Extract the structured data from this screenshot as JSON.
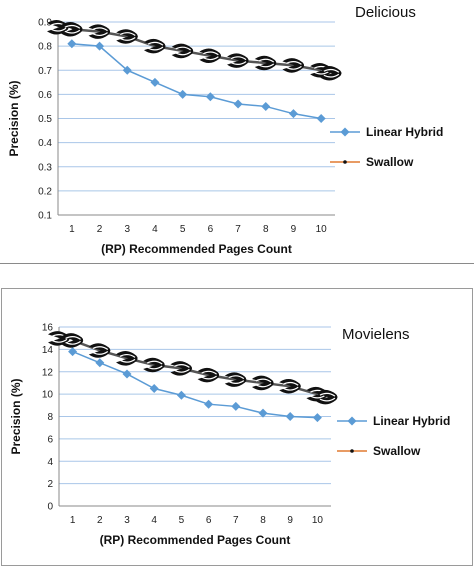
{
  "chart_data": [
    {
      "type": "line",
      "title": "Delicious",
      "xlabel": "(RP) Recommended Pages Count",
      "ylabel": "Precision (%)",
      "ylim": [
        0.1,
        0.9
      ],
      "yticks": [
        "0.1",
        "0.2",
        "0.3",
        "0.4",
        "0.5",
        "0.6",
        "0.7",
        "0.8",
        "0.9"
      ],
      "grid": "horizontal",
      "legend_position": "right",
      "x": [
        1,
        2,
        3,
        4,
        5,
        6,
        7,
        8,
        9,
        10
      ],
      "series": [
        {
          "name": "Linear Hybrid",
          "color": "#5b9bd5",
          "marker": "diamond",
          "values": [
            0.81,
            0.8,
            0.7,
            0.65,
            0.6,
            0.59,
            0.56,
            0.55,
            0.52,
            0.5
          ]
        },
        {
          "name": "Swallow",
          "color": "#111111",
          "marker": "swallow",
          "values": [
            0.87,
            0.86,
            0.84,
            0.8,
            0.78,
            0.76,
            0.74,
            0.73,
            0.72,
            0.7
          ]
        }
      ]
    },
    {
      "type": "line",
      "title": "Movielens",
      "xlabel": "(RP) Recommended Pages Count",
      "ylabel": "Precision (%)",
      "ylim": [
        0,
        16
      ],
      "yticks": [
        "0",
        "2",
        "4",
        "6",
        "8",
        "10",
        "12",
        "14",
        "16"
      ],
      "grid": "horizontal",
      "legend_position": "right",
      "x": [
        1,
        2,
        3,
        4,
        5,
        6,
        7,
        8,
        9,
        10
      ],
      "series": [
        {
          "name": "Linear Hybrid",
          "color": "#5b9bd5",
          "marker": "diamond",
          "values": [
            13.8,
            12.8,
            11.8,
            10.5,
            9.9,
            9.1,
            8.9,
            8.3,
            8.0,
            7.9
          ]
        },
        {
          "name": "Swallow",
          "color": "#111111",
          "marker": "swallow",
          "values": [
            14.8,
            13.9,
            13.2,
            12.6,
            12.3,
            11.7,
            11.3,
            11.0,
            10.7,
            10.0
          ]
        }
      ]
    }
  ]
}
